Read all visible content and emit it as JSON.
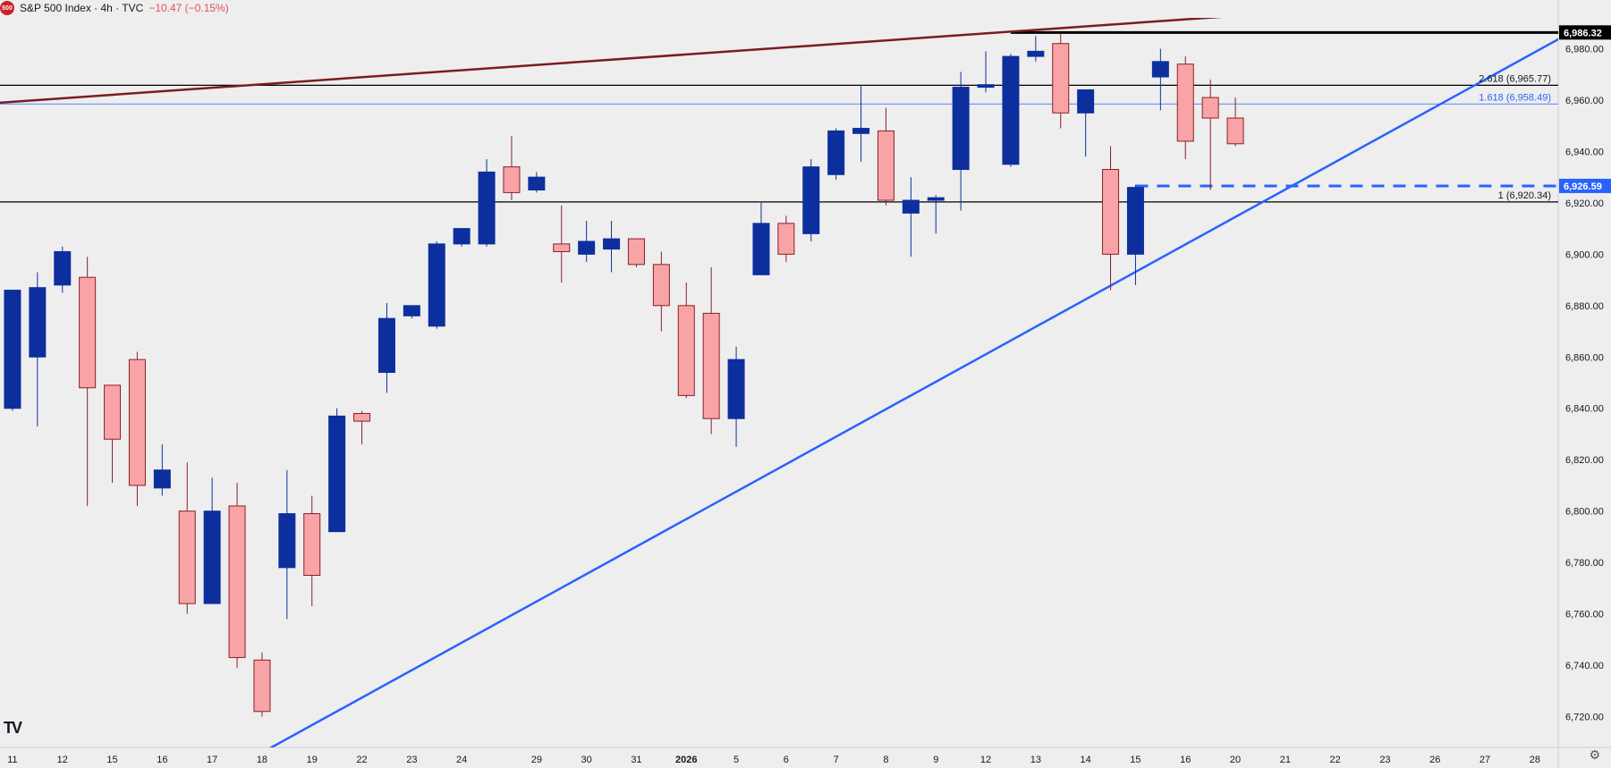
{
  "header": {
    "logo_text": "500",
    "title": "S&P 500 Index · 4h · TVC",
    "change": "−10.47 (−0.15%)"
  },
  "chart_data": {
    "type": "candlestick",
    "colors": {
      "up": "#0d2f9e",
      "down": "#f8a4a7",
      "down_border": "#8a1e26",
      "trendline_up": "#2962ff",
      "trendline_top": "#7a1c22"
    },
    "y_axis": {
      "min": 6708,
      "max": 6992,
      "ticks": [
        "6,980.00",
        "6,960.00",
        "6,940.00",
        "6,920.00",
        "6,900.00",
        "6,880.00",
        "6,860.00",
        "6,840.00",
        "6,820.00",
        "6,800.00",
        "6,780.00",
        "6,760.00",
        "6,740.00",
        "6,720.00"
      ],
      "tick_values": [
        6980,
        6960,
        6940,
        6920,
        6900,
        6880,
        6860,
        6840,
        6820,
        6800,
        6780,
        6760,
        6740,
        6720
      ]
    },
    "x_axis": {
      "labels": [
        "11",
        "12",
        "15",
        "16",
        "17",
        "18",
        "19",
        "22",
        "23",
        "24",
        "29",
        "30",
        "31",
        "2026",
        "5",
        "6",
        "7",
        "8",
        "9",
        "12",
        "13",
        "14",
        "15",
        "16",
        "20",
        "21",
        "22",
        "23",
        "26",
        "27",
        "28"
      ],
      "label_slots": [
        0.5,
        2.5,
        4.5,
        6.5,
        8.5,
        10.5,
        12.5,
        14.5,
        16.5,
        18.5,
        21.5,
        23.5,
        25.5,
        27.5,
        29.5,
        31.5,
        33.5,
        35.5,
        37.5,
        39.5,
        41.5,
        43.5,
        45.5,
        47.5,
        49.5,
        51.5,
        53.5,
        55.5,
        57.5,
        59.5,
        61.5
      ],
      "bold_label": "2026"
    },
    "candles": [
      {
        "o": 6840,
        "h": 6886,
        "l": 6839,
        "c": 6886
      },
      {
        "o": 6860,
        "h": 6893,
        "l": 6833,
        "c": 6887
      },
      {
        "o": 6888,
        "h": 6903,
        "l": 6885,
        "c": 6901
      },
      {
        "o": 6891,
        "h": 6899,
        "l": 6802,
        "c": 6848
      },
      {
        "o": 6849,
        "h": 6849,
        "l": 6811,
        "c": 6828
      },
      {
        "o": 6859,
        "h": 6862,
        "l": 6802,
        "c": 6810
      },
      {
        "o": 6809,
        "h": 6826,
        "l": 6806,
        "c": 6816
      },
      {
        "o": 6800,
        "h": 6819,
        "l": 6760,
        "c": 6764
      },
      {
        "o": 6764,
        "h": 6813,
        "l": 6764,
        "c": 6800
      },
      {
        "o": 6802,
        "h": 6811,
        "l": 6739,
        "c": 6743
      },
      {
        "o": 6742,
        "h": 6745,
        "l": 6720,
        "c": 6722
      },
      {
        "o": 6778,
        "h": 6816,
        "l": 6758,
        "c": 6799
      },
      {
        "o": 6799,
        "h": 6806,
        "l": 6763,
        "c": 6775
      },
      {
        "o": 6792,
        "h": 6840,
        "l": 6792,
        "c": 6837
      },
      {
        "o": 6838,
        "h": 6839,
        "l": 6826,
        "c": 6835
      },
      {
        "o": 6854,
        "h": 6881,
        "l": 6846,
        "c": 6875
      },
      {
        "o": 6876,
        "h": 6880,
        "l": 6875,
        "c": 6880
      },
      {
        "o": 6872,
        "h": 6905,
        "l": 6871,
        "c": 6904
      },
      {
        "o": 6904,
        "h": 6910,
        "l": 6903,
        "c": 6910
      },
      {
        "o": 6904,
        "h": 6937,
        "l": 6903,
        "c": 6932
      },
      {
        "o": 6934,
        "h": 6946,
        "l": 6921,
        "c": 6924
      },
      {
        "o": 6925,
        "h": 6932,
        "l": 6924,
        "c": 6930
      },
      {
        "o": 6904,
        "h": 6919,
        "l": 6889,
        "c": 6901
      },
      {
        "o": 6900,
        "h": 6913,
        "l": 6897,
        "c": 6905
      },
      {
        "o": 6902,
        "h": 6913,
        "l": 6893,
        "c": 6906
      },
      {
        "o": 6906,
        "h": 6906,
        "l": 6895,
        "c": 6896
      },
      {
        "o": 6896,
        "h": 6901,
        "l": 6870,
        "c": 6880
      },
      {
        "o": 6880,
        "h": 6889,
        "l": 6844,
        "c": 6845
      },
      {
        "o": 6877,
        "h": 6895,
        "l": 6830,
        "c": 6836
      },
      {
        "o": 6836,
        "h": 6864,
        "l": 6825,
        "c": 6859
      },
      {
        "o": 6892,
        "h": 6920,
        "l": 6892,
        "c": 6912
      },
      {
        "o": 6912,
        "h": 6915,
        "l": 6897,
        "c": 6900
      },
      {
        "o": 6908,
        "h": 6937,
        "l": 6905,
        "c": 6934
      },
      {
        "o": 6931,
        "h": 6949,
        "l": 6929,
        "c": 6948
      },
      {
        "o": 6947,
        "h": 6966,
        "l": 6936,
        "c": 6949
      },
      {
        "o": 6948,
        "h": 6957,
        "l": 6919,
        "c": 6921
      },
      {
        "o": 6916,
        "h": 6930,
        "l": 6899,
        "c": 6921
      },
      {
        "o": 6921,
        "h": 6923,
        "l": 6908,
        "c": 6922
      },
      {
        "o": 6933,
        "h": 6971,
        "l": 6917,
        "c": 6965
      },
      {
        "o": 6965,
        "h": 6979,
        "l": 6963,
        "c": 6966
      },
      {
        "o": 6935,
        "h": 6978,
        "l": 6934,
        "c": 6977
      },
      {
        "o": 6977,
        "h": 6985,
        "l": 6975,
        "c": 6979
      },
      {
        "o": 6982,
        "h": 6986,
        "l": 6949,
        "c": 6955
      },
      {
        "o": 6955,
        "h": 6964,
        "l": 6938,
        "c": 6964
      },
      {
        "o": 6933,
        "h": 6942,
        "l": 6886,
        "c": 6900
      },
      {
        "o": 6900,
        "h": 6927,
        "l": 6888,
        "c": 6926
      },
      {
        "o": 6969,
        "h": 6980,
        "l": 6956,
        "c": 6975
      },
      {
        "o": 6974,
        "h": 6977,
        "l": 6937,
        "c": 6944
      },
      {
        "o": 6961,
        "h": 6968,
        "l": 6925,
        "c": 6953
      },
      {
        "o": 6953,
        "h": 6961,
        "l": 6942,
        "c": 6943
      }
    ],
    "horizontal_lines": [
      {
        "value": 6986.32,
        "label": "6,986.32",
        "style": "bold",
        "color": "#000000",
        "start_slot": 40.5,
        "tag": "6,986.32"
      },
      {
        "value": 6965.77,
        "label": "2.618 (6,965.77)",
        "style": "solid",
        "color": "#000000",
        "start_slot": 0
      },
      {
        "value": 6958.49,
        "label": "1.618 (6,958.49)",
        "style": "thin",
        "color": "#2962ff",
        "start_slot": 0
      },
      {
        "value": 6926.59,
        "label": "",
        "style": "dashed",
        "color": "#2962ff",
        "start_slot": 45.5,
        "tag": "6,926.59"
      },
      {
        "value": 6920.34,
        "label": "1 (6,920.34)",
        "style": "solid",
        "color": "#000000",
        "start_slot": 0
      }
    ],
    "trendlines": [
      {
        "name": "",
        "color": "#7a1c22",
        "from": {
          "slot": 0,
          "value": 6959
        },
        "to": {
          "slot": 63,
          "value": 7002
        }
      },
      {
        "name": "",
        "color": "#2962ff",
        "from": {
          "slot": 10.5,
          "value": 6706
        },
        "to": {
          "slot": 62.5,
          "value": 6984
        }
      }
    ]
  }
}
